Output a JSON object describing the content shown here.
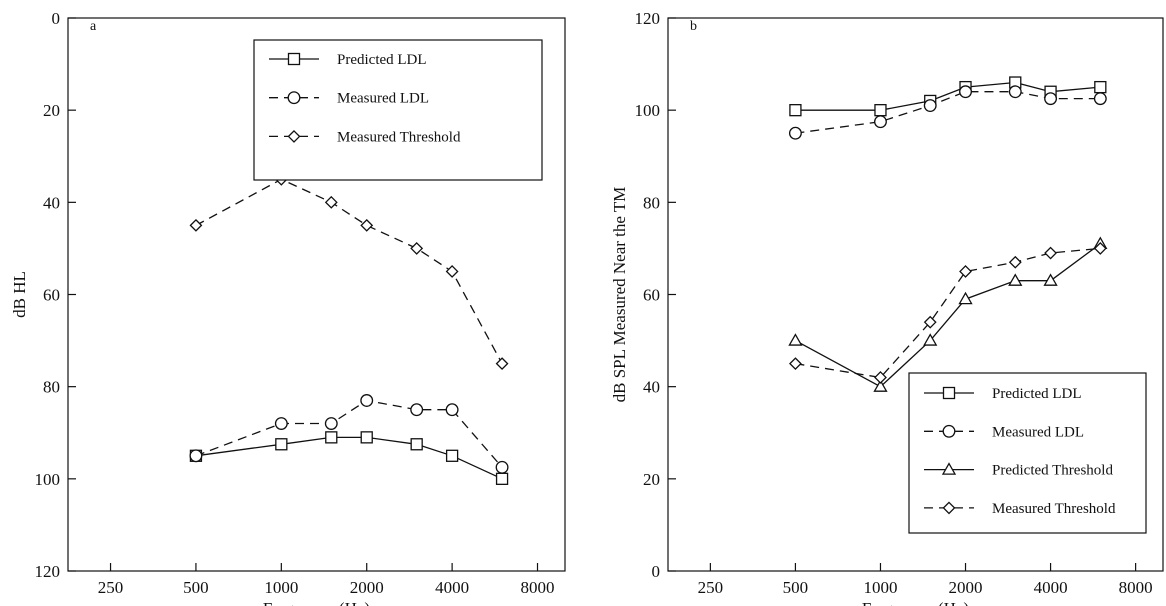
{
  "chart_data": [
    {
      "type": "line",
      "panel_letter": "a",
      "xlabel": "Frequency (Hz)",
      "ylabel": "dB HL",
      "x_scale": "log2",
      "xlim": [
        177,
        10000
      ],
      "ylim": [
        0,
        120
      ],
      "y_inverted": true,
      "x_ticks": [
        250,
        500,
        1000,
        2000,
        4000,
        8000
      ],
      "y_ticks": [
        0,
        20,
        40,
        60,
        80,
        100,
        120
      ],
      "legend_position": "top-right",
      "grid": false,
      "series": [
        {
          "name": "Predicted LDL",
          "marker": "square",
          "dash": "solid",
          "x": [
            500,
            1000,
            1500,
            2000,
            3000,
            4000,
            6000
          ],
          "y": [
            95,
            92.5,
            91,
            91,
            92.5,
            95,
            100
          ]
        },
        {
          "name": "Measured LDL",
          "marker": "circle",
          "dash": "dashed",
          "x": [
            500,
            1000,
            1500,
            2000,
            3000,
            4000,
            6000
          ],
          "y": [
            95,
            88,
            88,
            83,
            85,
            85,
            97.5
          ]
        },
        {
          "name": "Measured Threshold",
          "marker": "diamond",
          "dash": "dashed",
          "x": [
            500,
            1000,
            1500,
            2000,
            3000,
            4000,
            6000
          ],
          "y": [
            45,
            35,
            40,
            45,
            50,
            55,
            75
          ]
        }
      ]
    },
    {
      "type": "line",
      "panel_letter": "b",
      "xlabel": "Frequency (Hz)",
      "ylabel": "dB SPL Measured Near the TM",
      "x_scale": "log2",
      "xlim": [
        177,
        10000
      ],
      "ylim": [
        0,
        120
      ],
      "y_inverted": false,
      "x_ticks": [
        250,
        500,
        1000,
        2000,
        4000,
        8000
      ],
      "y_ticks": [
        0,
        20,
        40,
        60,
        80,
        100,
        120
      ],
      "legend_position": "bottom-right",
      "grid": false,
      "series": [
        {
          "name": "Predicted LDL",
          "marker": "square",
          "dash": "solid",
          "x": [
            500,
            1000,
            1500,
            2000,
            3000,
            4000,
            6000
          ],
          "y": [
            100,
            100,
            102,
            105,
            106,
            104,
            105
          ]
        },
        {
          "name": "Measured LDL",
          "marker": "circle",
          "dash": "dashed",
          "x": [
            500,
            1000,
            1500,
            2000,
            3000,
            4000,
            6000
          ],
          "y": [
            95,
            97.5,
            101,
            104,
            104,
            102.5,
            102.5
          ]
        },
        {
          "name": "Predicted Threshold",
          "marker": "triangle",
          "dash": "solid",
          "x": [
            500,
            1000,
            1500,
            2000,
            3000,
            4000,
            6000
          ],
          "y": [
            50,
            40,
            50,
            59,
            63,
            63,
            71
          ]
        },
        {
          "name": "Measured Threshold",
          "marker": "diamond",
          "dash": "dashed",
          "x": [
            500,
            1000,
            1500,
            2000,
            3000,
            4000,
            6000
          ],
          "y": [
            45,
            42,
            54,
            65,
            67,
            69,
            70
          ]
        }
      ]
    }
  ]
}
